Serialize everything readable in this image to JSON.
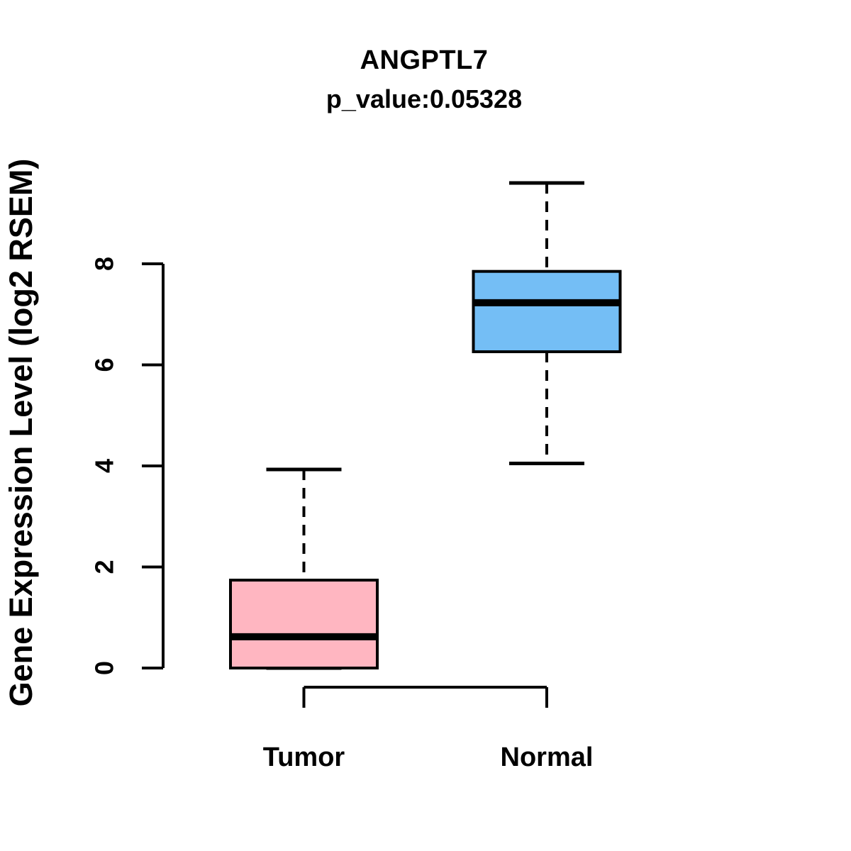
{
  "header": {
    "title": "ANGPTL7",
    "subtitle": "p_value:0.05328"
  },
  "chart_data": {
    "type": "boxplot",
    "title": "ANGPTL7",
    "subtitle": "p_value:0.05328",
    "xlabel": "",
    "ylabel": "Gene Expression Level (log2 RSEM)",
    "categories": [
      "Tumor",
      "Normal"
    ],
    "yticks": [
      0,
      2,
      4,
      6,
      8
    ],
    "ylim": [
      -0.5,
      10.0
    ],
    "grid": false,
    "legend": "none",
    "axis_color": "#000000",
    "series": [
      {
        "name": "Tumor",
        "fill_color": "#FFB6C1",
        "border_color": "#000000",
        "whisker_low": 0.0,
        "q1": 0.0,
        "median": 0.62,
        "q3": 1.74,
        "whisker_high": 3.93
      },
      {
        "name": "Normal",
        "fill_color": "#74BEF5",
        "border_color": "#000000",
        "whisker_low": 4.05,
        "q1": 6.26,
        "median": 7.23,
        "q3": 7.85,
        "whisker_high": 9.6
      }
    ]
  }
}
